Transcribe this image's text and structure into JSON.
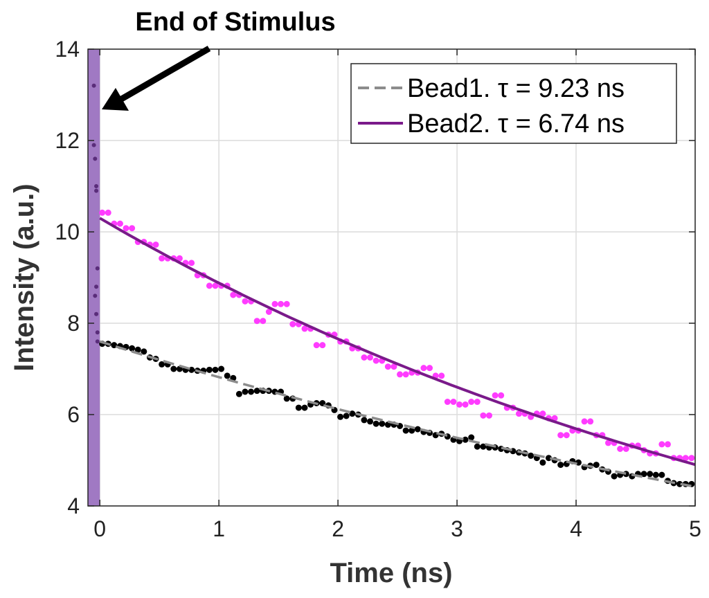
{
  "chart_data": {
    "type": "scatter",
    "annotation": "End of Stimulus",
    "xlabel": "Time (ns)",
    "ylabel": "Intensity (a.u.)",
    "xlim": [
      -0.1,
      5
    ],
    "ylim": [
      4,
      14
    ],
    "x_ticks": [
      0,
      1,
      2,
      3,
      4,
      5
    ],
    "y_ticks": [
      4,
      6,
      8,
      10,
      12,
      14
    ],
    "grid": true,
    "legend_position": "top-right",
    "stimulus_band": {
      "x_start": -0.1,
      "x_end": 0,
      "color": "#9b72c0"
    },
    "stimulus_points": {
      "color": "#5a2d7a",
      "x": [
        -0.05,
        -0.05,
        -0.04,
        -0.03,
        -0.03,
        -0.02,
        -0.03,
        -0.04,
        -0.03,
        -0.02,
        -0.02
      ],
      "y": [
        13.2,
        11.9,
        11.6,
        11.0,
        10.9,
        9.2,
        8.8,
        8.6,
        8.2,
        7.8,
        7.6
      ]
    },
    "series": [
      {
        "name": "Bead1. τ = 9.23 ns",
        "line_color": "#8c8c8c",
        "line_style": "dashed",
        "point_color": "#000000",
        "fit": {
          "amplitude": 7.6,
          "tau": 9.23
        },
        "x": [
          0.02,
          0.07,
          0.12,
          0.17,
          0.22,
          0.27,
          0.32,
          0.37,
          0.42,
          0.47,
          0.52,
          0.57,
          0.62,
          0.67,
          0.72,
          0.77,
          0.82,
          0.87,
          0.92,
          0.97,
          1.02,
          1.07,
          1.12,
          1.17,
          1.22,
          1.27,
          1.32,
          1.37,
          1.42,
          1.47,
          1.52,
          1.57,
          1.62,
          1.67,
          1.72,
          1.77,
          1.82,
          1.87,
          1.92,
          1.97,
          2.02,
          2.07,
          2.12,
          2.17,
          2.22,
          2.27,
          2.32,
          2.37,
          2.42,
          2.47,
          2.52,
          2.57,
          2.62,
          2.67,
          2.72,
          2.77,
          2.82,
          2.87,
          2.92,
          2.97,
          3.02,
          3.07,
          3.12,
          3.17,
          3.22,
          3.27,
          3.32,
          3.37,
          3.42,
          3.47,
          3.52,
          3.57,
          3.62,
          3.67,
          3.72,
          3.77,
          3.82,
          3.87,
          3.92,
          3.97,
          4.02,
          4.07,
          4.12,
          4.17,
          4.22,
          4.27,
          4.32,
          4.37,
          4.42,
          4.47,
          4.52,
          4.57,
          4.62,
          4.67,
          4.72,
          4.77,
          4.82,
          4.87,
          4.92,
          4.97
        ],
        "y": [
          7.55,
          7.55,
          7.52,
          7.5,
          7.48,
          7.45,
          7.42,
          7.38,
          7.25,
          7.22,
          7.1,
          7.1,
          7.0,
          7.0,
          6.98,
          6.98,
          6.96,
          6.96,
          6.98,
          6.98,
          7.0,
          6.85,
          6.8,
          6.45,
          6.5,
          6.5,
          6.52,
          6.52,
          6.52,
          6.5,
          6.5,
          6.35,
          6.35,
          6.15,
          6.15,
          6.22,
          6.25,
          6.25,
          6.2,
          6.1,
          5.95,
          5.97,
          6.02,
          6.0,
          5.88,
          5.85,
          5.8,
          5.8,
          5.78,
          5.78,
          5.75,
          5.65,
          5.65,
          5.68,
          5.62,
          5.6,
          5.55,
          5.58,
          5.52,
          5.45,
          5.42,
          5.45,
          5.5,
          5.3,
          5.3,
          5.28,
          5.28,
          5.25,
          5.22,
          5.2,
          5.17,
          5.15,
          5.1,
          5.05,
          4.95,
          5.05,
          5.0,
          4.9,
          4.92,
          4.98,
          4.95,
          4.85,
          4.88,
          4.9,
          4.8,
          4.75,
          4.65,
          4.68,
          4.7,
          4.65,
          4.7,
          4.7,
          4.7,
          4.68,
          4.68,
          4.55,
          4.5,
          4.48,
          4.48,
          4.48
        ]
      },
      {
        "name": "Bead2. τ = 6.74 ns",
        "line_color": "#7a1a8a",
        "line_style": "solid",
        "point_color": "#ff3cff",
        "fit": {
          "amplitude": 10.3,
          "tau": 6.74
        },
        "x": [
          0.02,
          0.07,
          0.12,
          0.17,
          0.22,
          0.27,
          0.32,
          0.37,
          0.42,
          0.47,
          0.52,
          0.57,
          0.62,
          0.67,
          0.72,
          0.77,
          0.82,
          0.87,
          0.92,
          0.97,
          1.02,
          1.07,
          1.12,
          1.17,
          1.22,
          1.27,
          1.32,
          1.37,
          1.42,
          1.47,
          1.52,
          1.57,
          1.62,
          1.67,
          1.72,
          1.77,
          1.82,
          1.87,
          1.92,
          1.97,
          2.02,
          2.07,
          2.12,
          2.17,
          2.22,
          2.27,
          2.32,
          2.37,
          2.42,
          2.47,
          2.52,
          2.57,
          2.62,
          2.67,
          2.72,
          2.77,
          2.82,
          2.87,
          2.92,
          2.97,
          3.02,
          3.07,
          3.12,
          3.17,
          3.22,
          3.27,
          3.32,
          3.37,
          3.42,
          3.47,
          3.52,
          3.57,
          3.62,
          3.67,
          3.72,
          3.77,
          3.82,
          3.87,
          3.92,
          3.97,
          4.02,
          4.07,
          4.12,
          4.17,
          4.22,
          4.27,
          4.32,
          4.37,
          4.42,
          4.47,
          4.52,
          4.57,
          4.62,
          4.67,
          4.72,
          4.77,
          4.82,
          4.87,
          4.92,
          4.97
        ],
        "y": [
          10.42,
          10.42,
          10.18,
          10.18,
          10.08,
          10.08,
          9.78,
          9.78,
          9.72,
          9.72,
          9.42,
          9.42,
          9.42,
          9.42,
          9.32,
          9.32,
          9.05,
          9.05,
          8.82,
          8.82,
          8.82,
          8.82,
          8.62,
          8.62,
          8.48,
          8.48,
          8.05,
          8.05,
          8.25,
          8.42,
          8.42,
          8.42,
          7.98,
          7.98,
          7.88,
          7.88,
          7.52,
          7.52,
          7.75,
          7.75,
          7.6,
          7.6,
          7.45,
          7.45,
          7.25,
          7.25,
          7.18,
          7.18,
          7.05,
          7.05,
          6.88,
          6.88,
          6.92,
          6.92,
          7.02,
          7.02,
          6.85,
          6.85,
          6.28,
          6.28,
          6.22,
          6.22,
          6.28,
          6.28,
          5.98,
          5.98,
          6.42,
          6.42,
          6.15,
          6.15,
          6.02,
          6.02,
          5.95,
          6.02,
          6.02,
          5.92,
          5.92,
          5.55,
          5.55,
          5.65,
          5.65,
          5.85,
          5.85,
          5.55,
          5.55,
          5.38,
          5.38,
          5.25,
          5.25,
          5.32,
          5.32,
          5.22,
          5.15,
          5.15,
          5.35,
          5.35,
          5.05,
          5.05,
          5.05,
          5.05
        ]
      }
    ]
  }
}
